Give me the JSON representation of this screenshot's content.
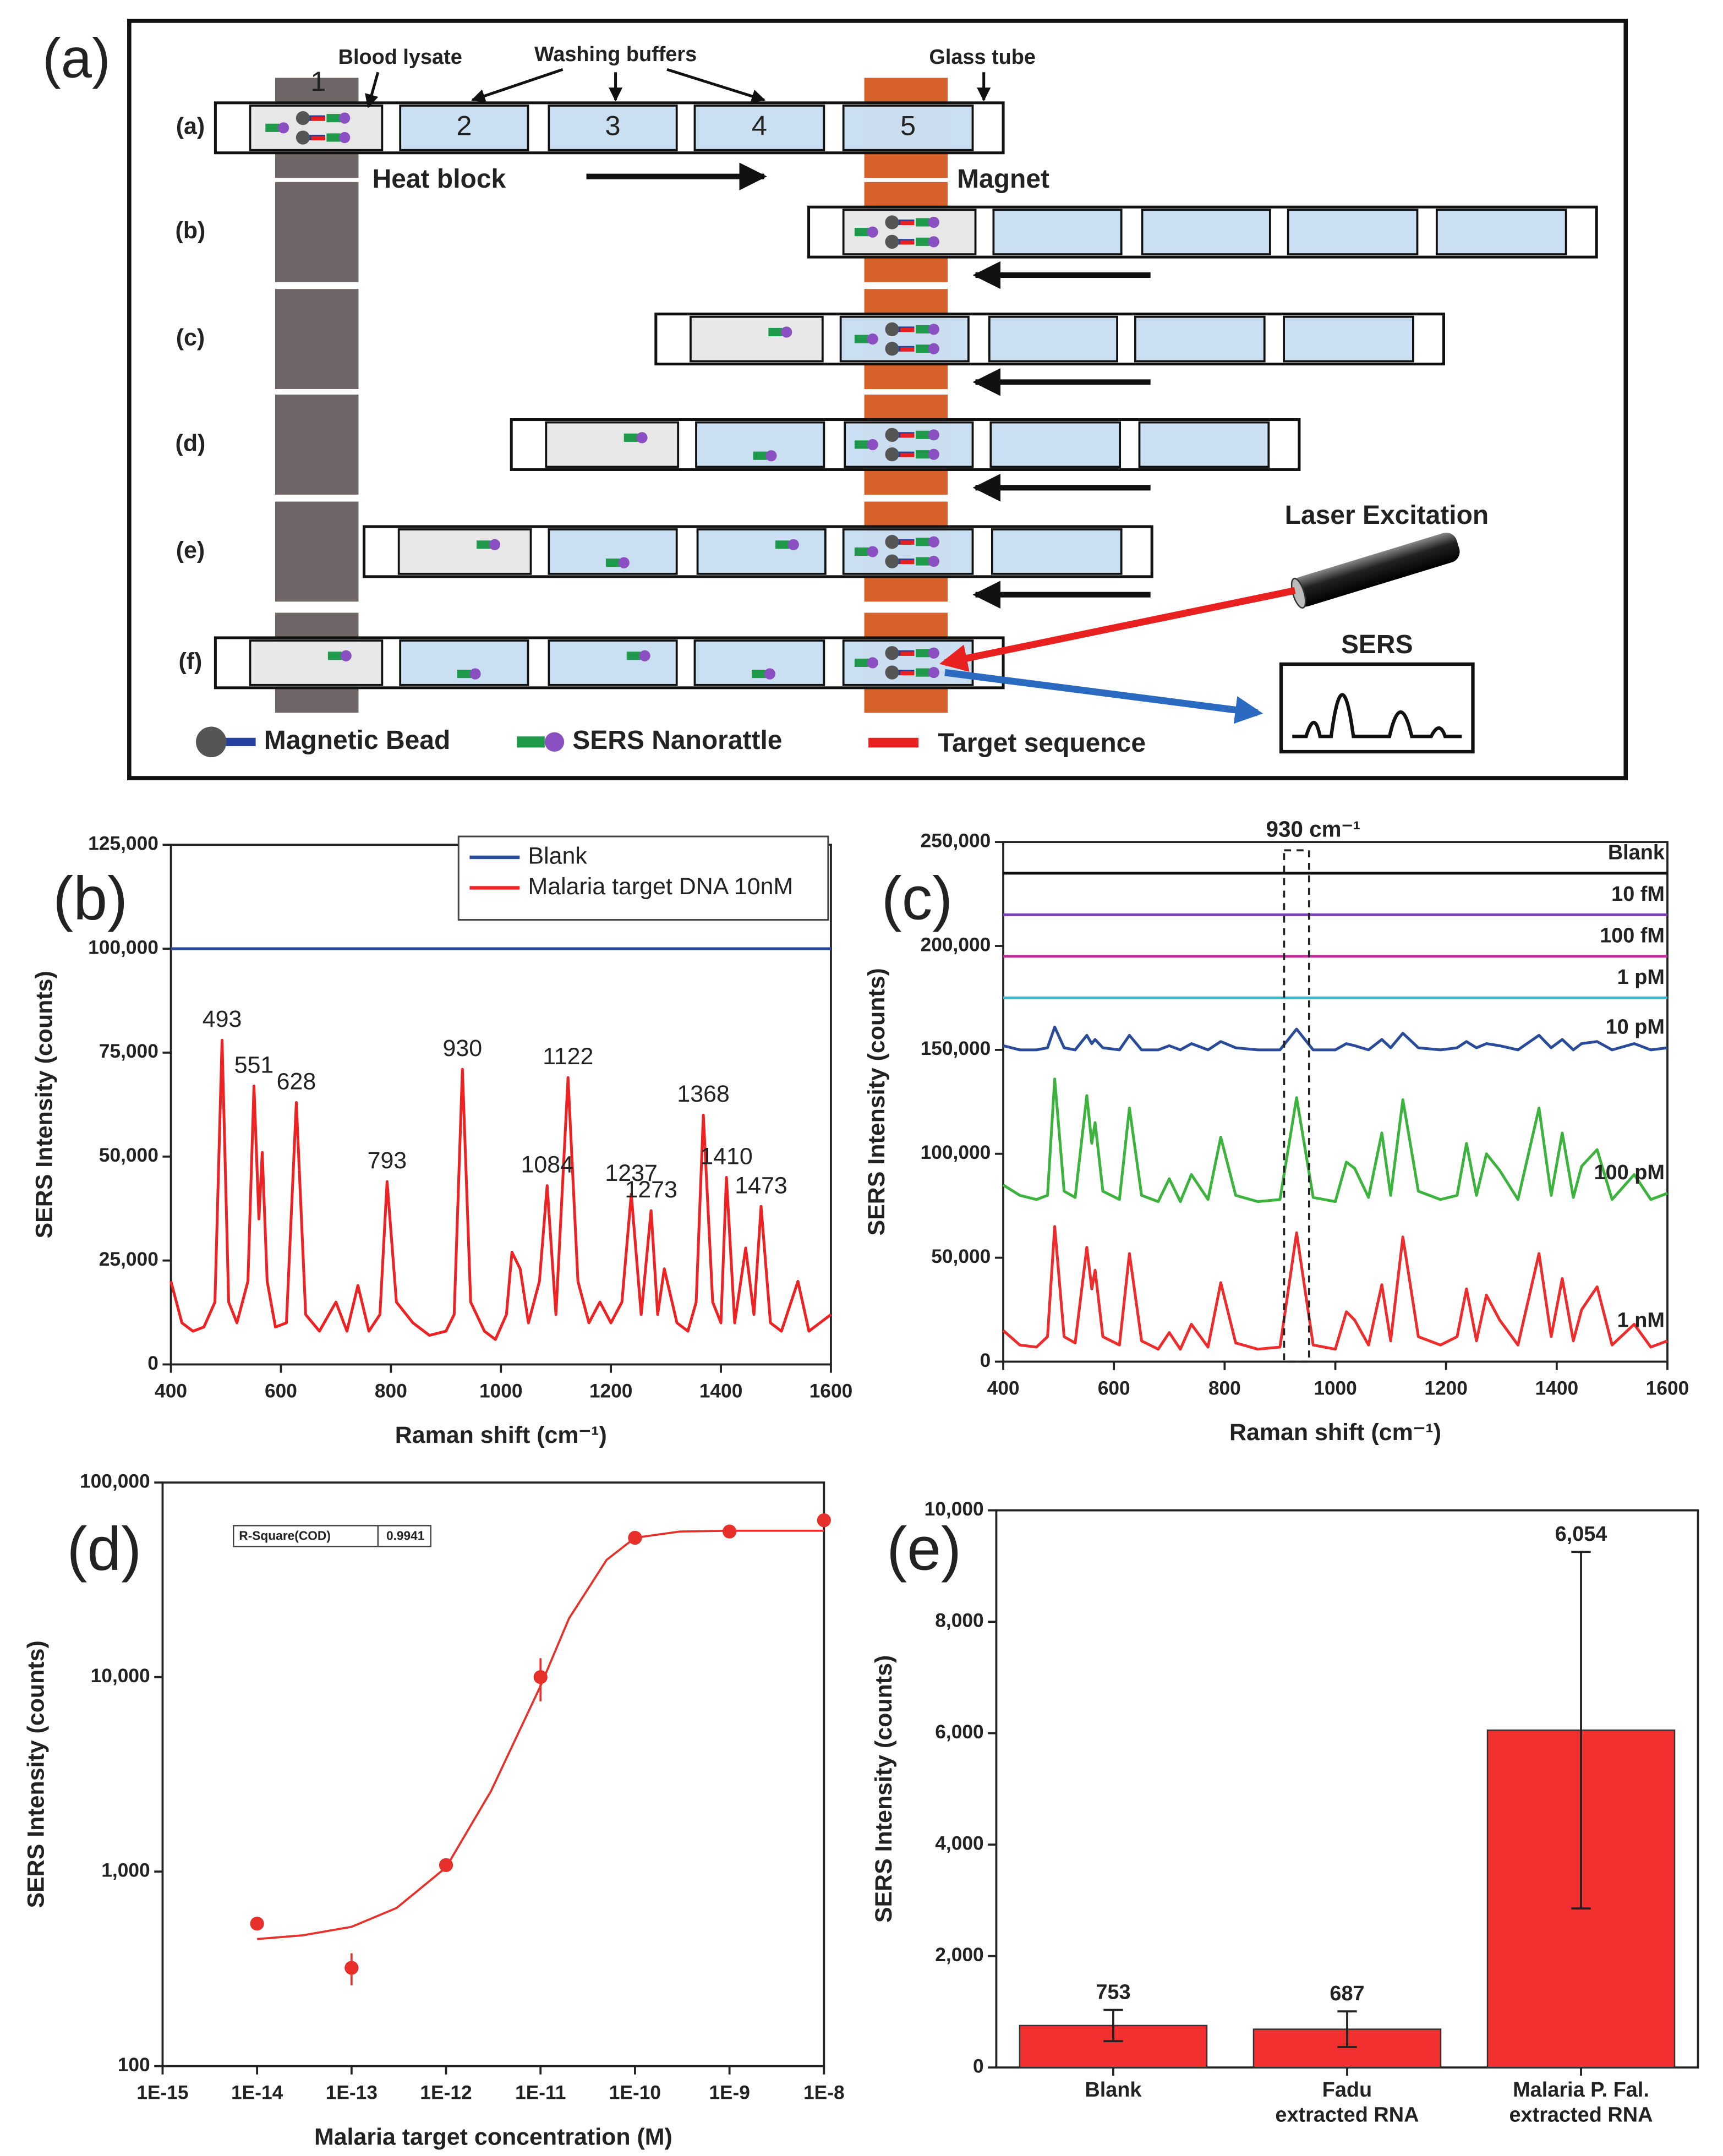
{
  "diagram": {
    "panel_label": "(a)",
    "top_labels": [
      "Blood lysate",
      "Washing buffers",
      "Glass tube"
    ],
    "row_labels": [
      "(a)",
      "(b)",
      "(c)",
      "(d)",
      "(e)",
      "(f)"
    ],
    "compartments": [
      "1",
      "2",
      "3",
      "4",
      "5"
    ],
    "heat_block": "Heat block",
    "magnet": "Magnet",
    "laser": "Laser Excitation",
    "detector": "SERS",
    "legend": [
      "Magnetic Bead",
      "SERS Nanorattle",
      "Target sequence"
    ]
  },
  "chart_data": [
    {
      "type": "line",
      "panel_label": "(b)",
      "x_label": "Raman shift (cm⁻¹)",
      "y_label": "SERS Intensity (counts)",
      "legend": "upper right",
      "xlim": [
        400,
        1600
      ],
      "xticks": [
        400,
        600,
        800,
        1000,
        1200,
        1400,
        1600
      ],
      "ylim": [
        0,
        125000
      ],
      "yticks": [
        0,
        {
          "value": 25000,
          "label": "25,000"
        },
        {
          "value": 50000,
          "label": "50,000"
        },
        {
          "value": 75000,
          "label": "75,000"
        },
        {
          "value": 100000,
          "label": "100,000"
        },
        {
          "value": 125000,
          "label": "125,000"
        }
      ],
      "peak_labels": [
        493,
        551,
        628,
        793,
        930,
        1084,
        1122,
        1237,
        1273,
        1368,
        1410,
        1473
      ],
      "series": [
        {
          "name": "Blank",
          "color": "#2a4a9a",
          "x": [
            400,
            1600
          ],
          "values": [
            100000,
            100000
          ]
        },
        {
          "name": "Malaria target DNA 10nM",
          "color": "#ee2222",
          "x": [
            400,
            420,
            440,
            460,
            480,
            493,
            505,
            520,
            540,
            551,
            560,
            566,
            575,
            590,
            610,
            628,
            645,
            670,
            700,
            720,
            740,
            760,
            780,
            793,
            810,
            840,
            870,
            900,
            915,
            930,
            945,
            970,
            990,
            1010,
            1020,
            1035,
            1050,
            1070,
            1084,
            1100,
            1122,
            1140,
            1160,
            1180,
            1200,
            1220,
            1237,
            1255,
            1273,
            1285,
            1297,
            1320,
            1340,
            1355,
            1368,
            1385,
            1400,
            1410,
            1425,
            1445,
            1460,
            1473,
            1490,
            1510,
            1540,
            1560,
            1580,
            1600
          ],
          "values": [
            20000,
            10000,
            8000,
            9000,
            15000,
            78000,
            15000,
            10000,
            20000,
            67000,
            35000,
            51000,
            20000,
            9000,
            10000,
            63000,
            12000,
            8000,
            15000,
            8000,
            19000,
            8000,
            12000,
            44000,
            15000,
            10000,
            7000,
            8000,
            12000,
            71000,
            15000,
            8000,
            6000,
            12000,
            27000,
            23000,
            10000,
            20000,
            43000,
            12000,
            69000,
            20000,
            10000,
            15000,
            10000,
            15000,
            41000,
            12000,
            37000,
            12000,
            23000,
            10000,
            8000,
            15000,
            60000,
            15000,
            10000,
            45000,
            10000,
            28000,
            12000,
            38000,
            10000,
            8000,
            20000,
            8000,
            10000,
            12000
          ]
        }
      ]
    },
    {
      "type": "line",
      "panel_label": "(c)",
      "x_label": "Raman shift (cm⁻¹)",
      "y_label": "SERS Intensity (counts)",
      "xlim": [
        400,
        1600
      ],
      "xticks": [
        400,
        600,
        800,
        1000,
        1200,
        1400,
        1600
      ],
      "ylim": [
        0,
        250000
      ],
      "yticks": [
        0,
        {
          "value": 50000,
          "label": "50,000"
        },
        {
          "value": 100000,
          "label": "100,000"
        },
        {
          "value": 150000,
          "label": "150,000"
        },
        {
          "value": 200000,
          "label": "200,000"
        },
        {
          "value": 250000,
          "label": "250,000"
        }
      ],
      "annotation": {
        "text": "930 cm⁻¹",
        "x": 930
      },
      "series": [
        {
          "name": "Blank",
          "color": "#111111",
          "x": [
            400,
            1600
          ],
          "values": [
            235000,
            235000
          ]
        },
        {
          "name": "10 fM",
          "color": "#7a3fb0",
          "x": [
            400,
            1600
          ],
          "values": [
            215000,
            215000
          ]
        },
        {
          "name": "100 fM",
          "color": "#c0309b",
          "x": [
            400,
            1600
          ],
          "values": [
            195000,
            195000
          ]
        },
        {
          "name": "1 pM",
          "color": "#35b8d6",
          "x": [
            400,
            1600
          ],
          "values": [
            175000,
            175000
          ]
        },
        {
          "name": "10 pM",
          "color": "#2a4a9a",
          "x": [
            400,
            430,
            460,
            480,
            493,
            510,
            530,
            551,
            560,
            566,
            580,
            610,
            628,
            650,
            680,
            700,
            720,
            740,
            770,
            793,
            820,
            860,
            900,
            930,
            960,
            1000,
            1020,
            1035,
            1060,
            1084,
            1100,
            1122,
            1150,
            1190,
            1220,
            1237,
            1255,
            1273,
            1297,
            1330,
            1368,
            1390,
            1410,
            1430,
            1445,
            1473,
            1500,
            1540,
            1570,
            1600
          ],
          "values": [
            152000,
            150000,
            150000,
            151000,
            161000,
            151000,
            150000,
            157000,
            153000,
            155000,
            151000,
            150000,
            157000,
            150000,
            150000,
            152000,
            150000,
            153000,
            150000,
            154000,
            151000,
            150000,
            150000,
            160000,
            150000,
            150000,
            153000,
            152000,
            150000,
            155000,
            151000,
            158000,
            151000,
            150000,
            151000,
            154000,
            151000,
            153000,
            152000,
            150000,
            157000,
            151000,
            155000,
            150000,
            153000,
            154000,
            150000,
            153000,
            150000,
            151000
          ]
        },
        {
          "name": "100 pM",
          "color": "#3cb33c",
          "x": [
            400,
            430,
            460,
            480,
            493,
            510,
            530,
            551,
            560,
            566,
            580,
            610,
            628,
            650,
            680,
            700,
            720,
            740,
            770,
            793,
            820,
            860,
            900,
            930,
            960,
            1000,
            1020,
            1035,
            1060,
            1084,
            1100,
            1122,
            1150,
            1190,
            1220,
            1237,
            1255,
            1273,
            1297,
            1330,
            1368,
            1390,
            1410,
            1430,
            1445,
            1473,
            1500,
            1540,
            1570,
            1600
          ],
          "values": [
            85000,
            80000,
            78000,
            80000,
            136000,
            82000,
            79000,
            128000,
            105000,
            115000,
            82000,
            78000,
            122000,
            80000,
            77000,
            88000,
            77000,
            90000,
            78000,
            108000,
            80000,
            77000,
            78000,
            127000,
            79000,
            77000,
            96000,
            93000,
            79000,
            110000,
            80000,
            126000,
            82000,
            78000,
            80000,
            105000,
            80000,
            100000,
            92000,
            78000,
            122000,
            80000,
            110000,
            79000,
            94000,
            102000,
            78000,
            90000,
            78000,
            81000
          ]
        },
        {
          "name": "1 nM",
          "color": "#ee2c2c",
          "x": [
            400,
            430,
            460,
            480,
            493,
            510,
            530,
            551,
            560,
            566,
            580,
            610,
            628,
            650,
            680,
            700,
            720,
            740,
            770,
            793,
            820,
            860,
            900,
            930,
            960,
            1000,
            1020,
            1035,
            1060,
            1084,
            1100,
            1122,
            1150,
            1190,
            1220,
            1237,
            1255,
            1273,
            1297,
            1330,
            1368,
            1390,
            1410,
            1430,
            1445,
            1473,
            1500,
            1540,
            1570,
            1600
          ],
          "values": [
            15000,
            8000,
            7000,
            12000,
            65000,
            12000,
            9000,
            55000,
            35000,
            44000,
            12000,
            8000,
            52000,
            10000,
            6000,
            14000,
            6000,
            18000,
            7000,
            38000,
            9000,
            6000,
            7000,
            62000,
            8000,
            6000,
            24000,
            20000,
            8000,
            37000,
            10000,
            60000,
            12000,
            8000,
            12000,
            35000,
            10000,
            32000,
            20000,
            8000,
            52000,
            12000,
            40000,
            10000,
            25000,
            36000,
            8000,
            18000,
            7000,
            10000
          ]
        }
      ]
    },
    {
      "type": "scatter",
      "panel_label": "(d)",
      "x_label": "Malaria target concentration (M)",
      "y_label": "SERS Intensity (counts)",
      "log_x": true,
      "log_y": true,
      "xlim": [
        1e-15,
        1e-08
      ],
      "xticks": [
        {
          "value": 1e-15,
          "label": "1E-15"
        },
        {
          "value": 1e-14,
          "label": "1E-14"
        },
        {
          "value": 1e-13,
          "label": "1E-13"
        },
        {
          "value": 1e-12,
          "label": "1E-12"
        },
        {
          "value": 1e-11,
          "label": "1E-11"
        },
        {
          "value": 1e-10,
          "label": "1E-10"
        },
        {
          "value": 1e-09,
          "label": "1E-9"
        },
        {
          "value": 1e-08,
          "label": "1E-8"
        }
      ],
      "ylim": [
        100,
        100000
      ],
      "yticks": [
        100,
        {
          "value": 1000,
          "label": "1,000"
        },
        {
          "value": 10000,
          "label": "10,000"
        },
        {
          "value": 100000,
          "label": "100,000"
        }
      ],
      "fit_stats": {
        "label": "R-Square(COD)",
        "value": 0.9941
      },
      "series": [
        {
          "color": "#e8302a",
          "x": [
            1e-14,
            1e-13,
            1e-12,
            1e-11,
            1e-10,
            1e-09,
            1e-08
          ],
          "values": [
            540,
            320,
            1080,
            10000,
            52000,
            56000,
            64000
          ],
          "errors": [
            40,
            60,
            80,
            2500,
            2000,
            2000,
            2000
          ]
        },
        {
          "color": "#e8302a",
          "x": [
            1e-14,
            3e-14,
            1e-13,
            3e-13,
            1e-12,
            3e-12,
            1e-11,
            2e-11,
            5e-11,
            1e-10,
            3e-10,
            1e-09,
            1e-08
          ],
          "values": [
            450,
            470,
            520,
            650,
            1050,
            2600,
            9000,
            20000,
            40000,
            52000,
            56000,
            56500,
            56500
          ]
        }
      ]
    },
    {
      "type": "bar",
      "panel_label": "(e)",
      "y_label": "SERS Intensity (counts)",
      "color": "#f23030",
      "categories": [
        "Blank",
        "Fadu\nextracted RNA",
        "Malaria P. Fal.\nextracted RNA"
      ],
      "values": [
        753,
        687,
        6054
      ],
      "value_labels": [
        "753",
        "687",
        "6,054"
      ],
      "errors": [
        280,
        320,
        3200
      ],
      "ylim": [
        0,
        10000
      ],
      "yticks": [
        0,
        {
          "value": 2000,
          "label": "2,000"
        },
        {
          "value": 4000,
          "label": "4,000"
        },
        {
          "value": 6000,
          "label": "6,000"
        },
        {
          "value": 8000,
          "label": "8,000"
        },
        {
          "value": 10000,
          "label": "10,000"
        }
      ]
    }
  ]
}
